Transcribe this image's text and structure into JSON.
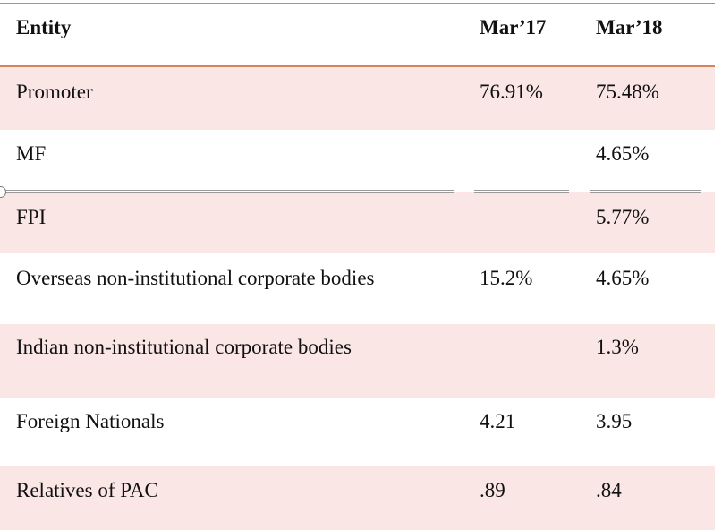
{
  "table": {
    "headers": [
      "Entity",
      "Mar’17",
      "Mar’18"
    ],
    "rows": [
      {
        "entity": "Promoter",
        "mar17": "76.91%",
        "mar18": "75.48%"
      },
      {
        "entity": "MF",
        "mar17": "",
        "mar18": "4.65%"
      },
      {
        "entity": "FPI",
        "mar17": "",
        "mar18": "5.77%"
      },
      {
        "entity": "Overseas non-institutional corporate bodies",
        "mar17": "15.2%",
        "mar18": "4.65%"
      },
      {
        "entity": "Indian non-institutional corporate bodies",
        "mar17": "",
        "mar18": "1.3%"
      },
      {
        "entity": "Foreign Nationals",
        "mar17": "4.21",
        "mar18": "3.95"
      },
      {
        "entity": "Relatives of PAC",
        "mar17": ".89",
        "mar18": ".84"
      }
    ]
  },
  "colors": {
    "accent_rule": "#d9825b",
    "row_shade": "#f9e6e5"
  }
}
